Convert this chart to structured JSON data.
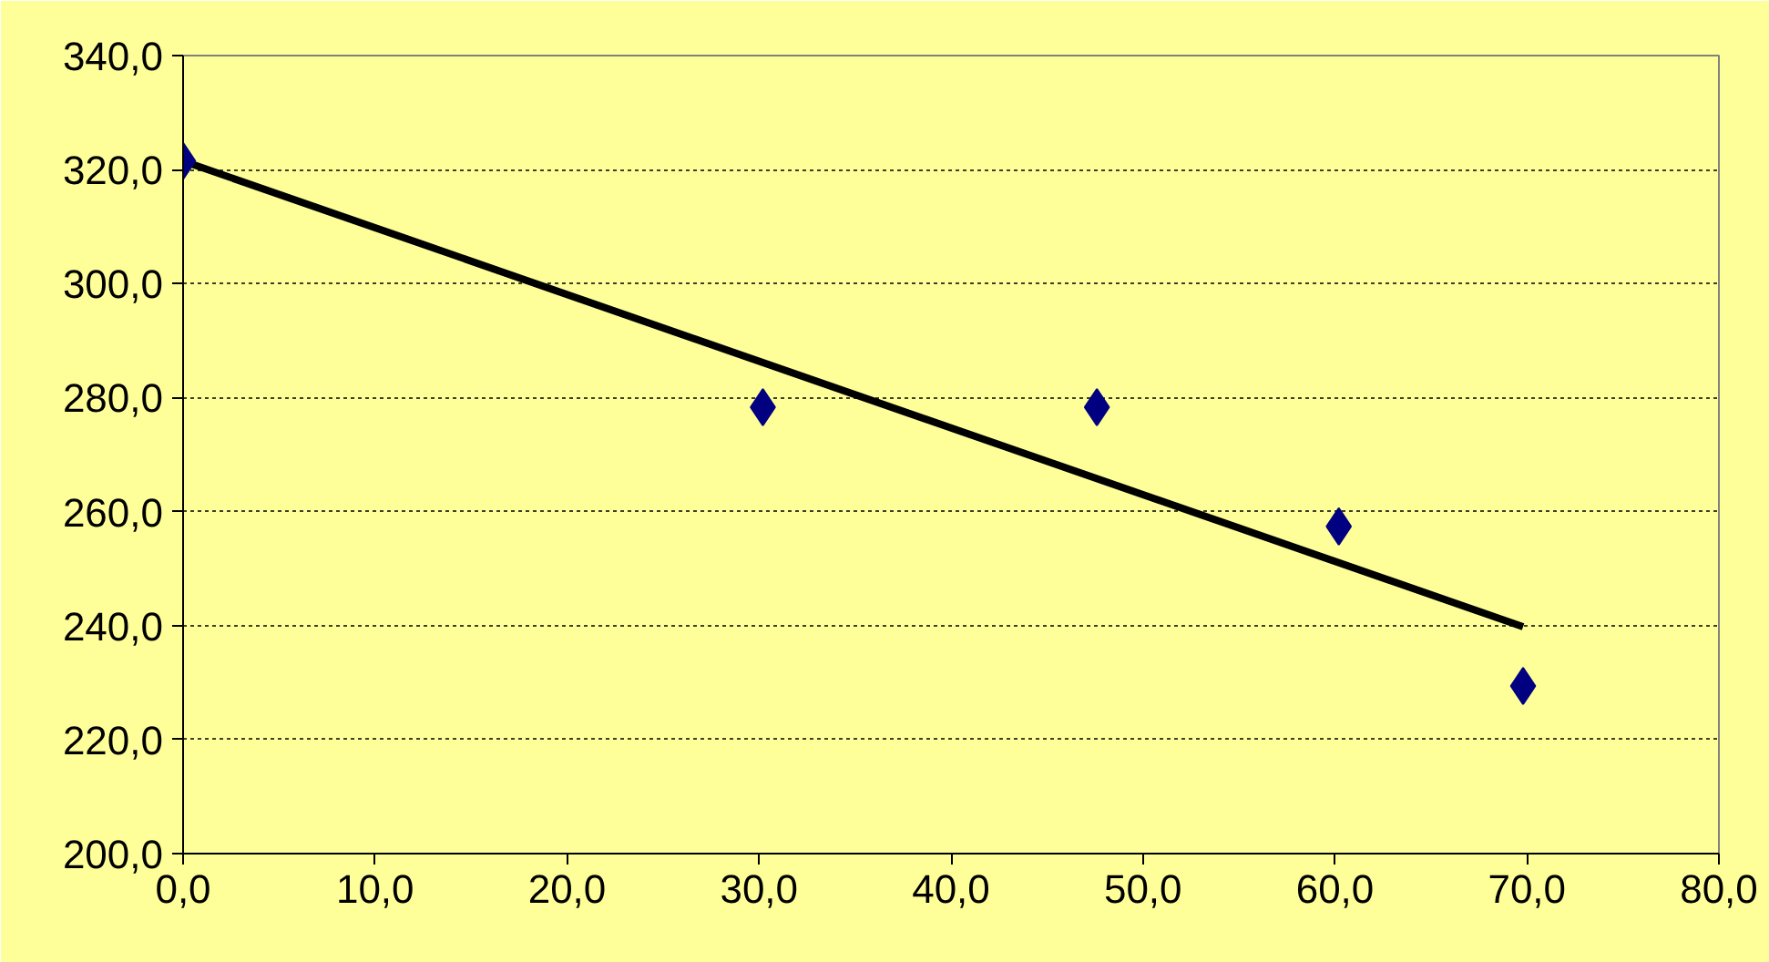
{
  "chart_data": {
    "type": "scatter",
    "grid": "y",
    "xlim": [
      0,
      80
    ],
    "ylim": [
      200,
      340
    ],
    "xticks": [
      {
        "value": 0,
        "label": "0,0"
      },
      {
        "value": 10,
        "label": "10,0"
      },
      {
        "value": 20,
        "label": "20,0"
      },
      {
        "value": 30,
        "label": "30,0"
      },
      {
        "value": 40,
        "label": "40,0"
      },
      {
        "value": 50,
        "label": "50,0"
      },
      {
        "value": 60,
        "label": "60,0"
      },
      {
        "value": 70,
        "label": "70,0"
      },
      {
        "value": 80,
        "label": "80,0"
      }
    ],
    "yticks": [
      {
        "value": 200,
        "label": "200,0"
      },
      {
        "value": 220,
        "label": "220,0"
      },
      {
        "value": 240,
        "label": "240,0"
      },
      {
        "value": 260,
        "label": "260,0"
      },
      {
        "value": 280,
        "label": "280,0"
      },
      {
        "value": 300,
        "label": "300,0"
      },
      {
        "value": 320,
        "label": "320,0"
      },
      {
        "value": 340,
        "label": "340,0"
      }
    ],
    "series": [
      {
        "type": "line",
        "color": "#000000",
        "x": [
          0,
          69.8
        ],
        "values": [
          321.5,
          239.8
        ]
      },
      {
        "marker": "diamond",
        "color": "#000080",
        "x": [
          0,
          30.2,
          47.6,
          60.2,
          69.8
        ],
        "values": [
          321.5,
          278.3,
          278.3,
          257.4,
          229.4
        ]
      }
    ]
  }
}
